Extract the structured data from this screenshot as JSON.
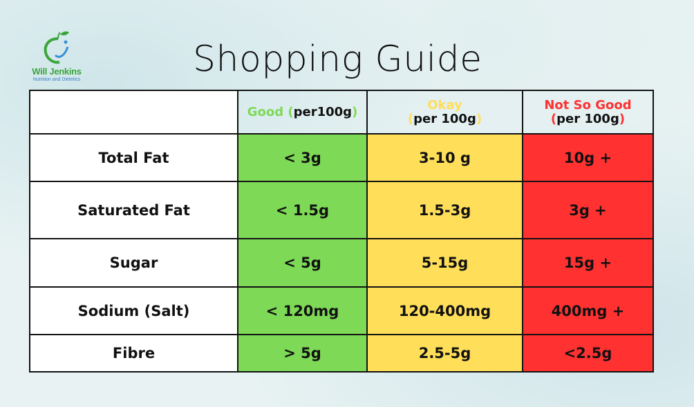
{
  "logo": {
    "name": "Will Jenkins",
    "subtitle": "Nutrition and Dietetics"
  },
  "title": "Shopping Guide",
  "headers": {
    "good": {
      "label": "Good",
      "unit": "per100g"
    },
    "okay": {
      "label": "Okay",
      "unit": "per 100g"
    },
    "bad": {
      "label": "Not So Good",
      "unit": "per 100g"
    }
  },
  "colors": {
    "good": "#7ed957",
    "okay": "#ffde59",
    "bad": "#ff3131"
  },
  "rows": [
    {
      "nutrient": "Total Fat",
      "good": "< 3g",
      "okay": "3-10 g",
      "bad": "10g +"
    },
    {
      "nutrient": "Saturated Fat",
      "good": "< 1.5g",
      "okay": "1.5-3g",
      "bad": "3g +"
    },
    {
      "nutrient": "Sugar",
      "good": "< 5g",
      "okay": "5-15g",
      "bad": "15g +"
    },
    {
      "nutrient": "Sodium (Salt)",
      "good": "< 120mg",
      "okay": "120-400mg",
      "bad": "400mg +"
    },
    {
      "nutrient": "Fibre",
      "good": "> 5g",
      "okay": "2.5-5g",
      "bad": "<2.5g"
    }
  ]
}
